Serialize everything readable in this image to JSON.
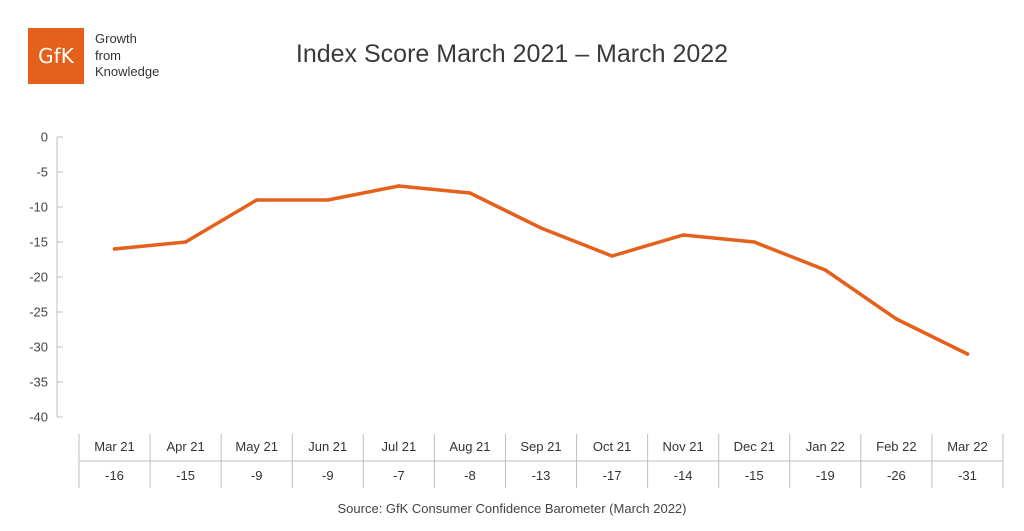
{
  "logo": {
    "mark": "GfK",
    "lines": [
      "Growth",
      "from",
      "Knowledge"
    ]
  },
  "colors": {
    "brand": "#e5601a",
    "line": "#e5601a",
    "axis": "#bfbfbf"
  },
  "source": "Source: GfK Consumer Confidence Barometer (March 2022)",
  "chart_data": {
    "type": "line",
    "title": "Index Score March 2021 – March 2022",
    "categories": [
      "Mar 21",
      "Apr 21",
      "May 21",
      "Jun 21",
      "Jul 21",
      "Aug 21",
      "Sep 21",
      "Oct 21",
      "Nov 21",
      "Dec 21",
      "Jan 22",
      "Feb 22",
      "Mar 22"
    ],
    "series": [
      {
        "values": [
          -16,
          -15,
          -9,
          -9,
          -7,
          -8,
          -13,
          -17,
          -14,
          -15,
          -19,
          -26,
          -31
        ]
      }
    ],
    "yticks": [
      0,
      -5,
      -10,
      -15,
      -20,
      -25,
      -30,
      -35,
      -40
    ],
    "ylim": [
      -40,
      0
    ],
    "grid": false,
    "legend": "none",
    "data_table": true
  }
}
